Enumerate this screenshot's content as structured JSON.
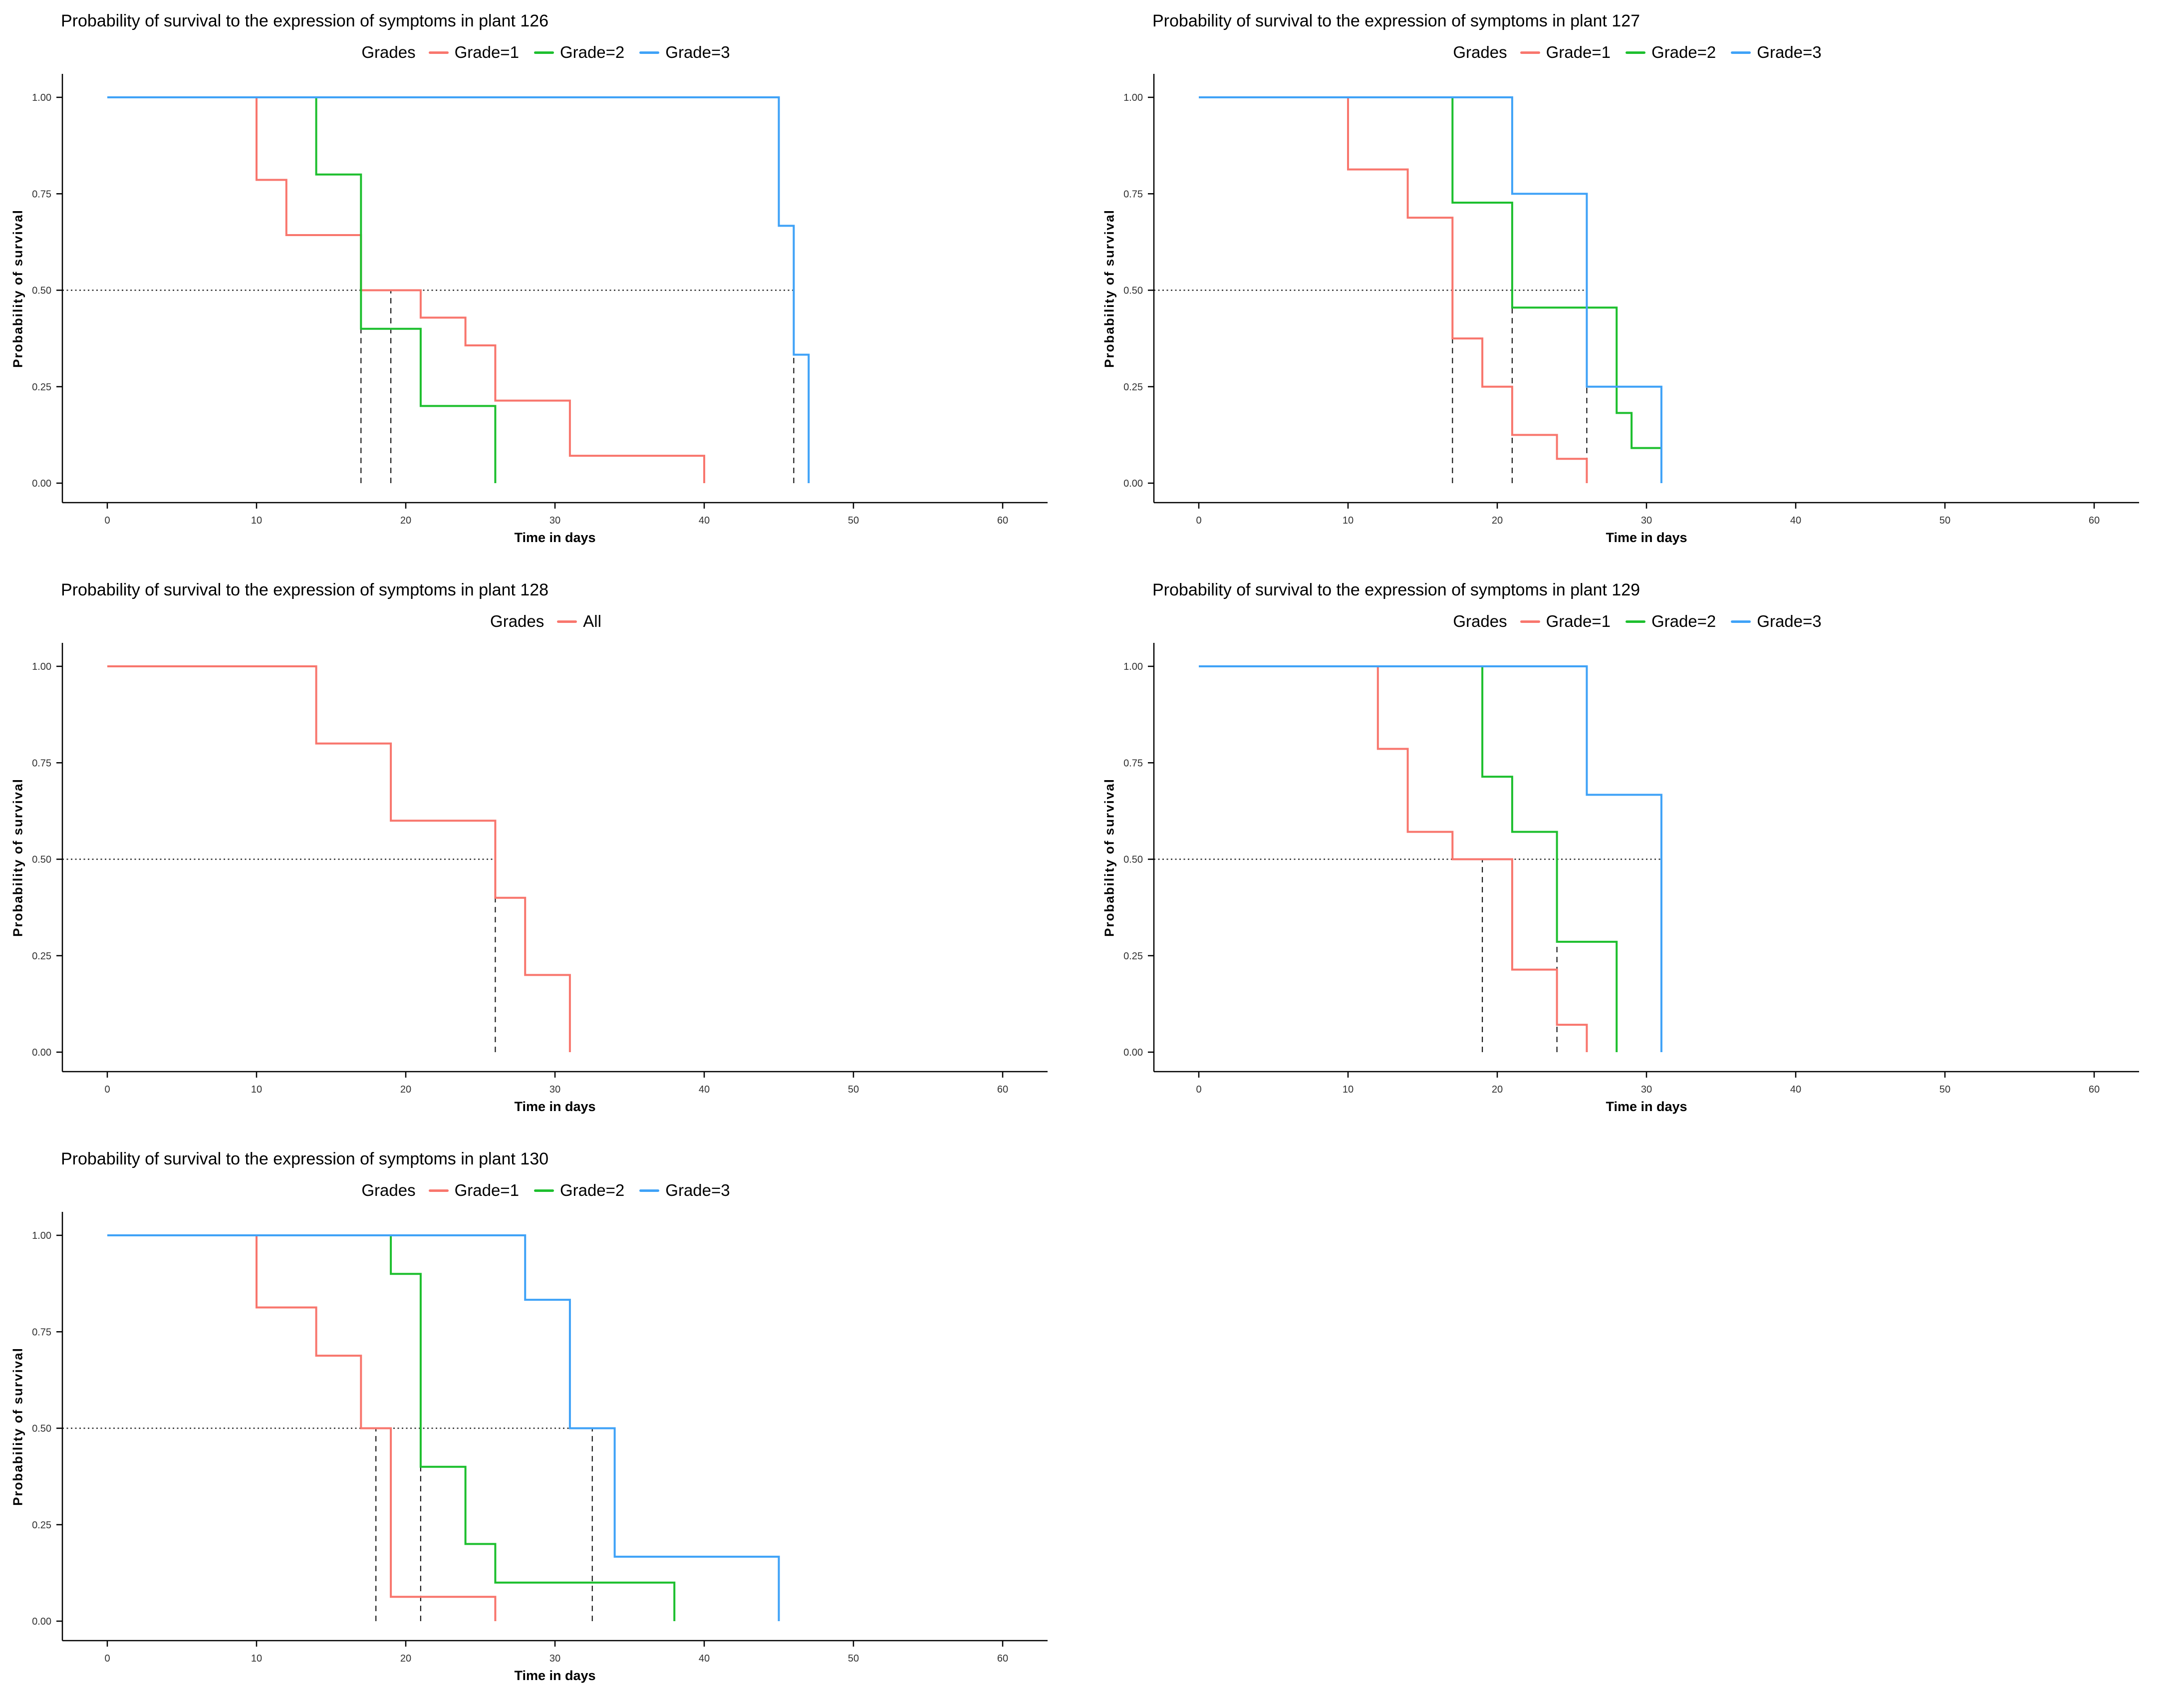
{
  "axis": {
    "xlabel": "Time in days",
    "ylabel": "Probability of survival",
    "xticks": [
      0,
      10,
      20,
      30,
      40,
      50,
      60
    ],
    "ytick_values": [
      0,
      0.25,
      0.5,
      0.75,
      1
    ],
    "ytick_labels": [
      "0.00",
      "0.25",
      "0.50",
      "0.75",
      "1.00"
    ],
    "xlim": [
      -3,
      63
    ],
    "ylim": [
      -0.05,
      1.06
    ],
    "grid": false,
    "legend_position": "top",
    "median_color": "#1a1a1a"
  },
  "colors": {
    "grade1": "#F8766D",
    "grade2": "#1DBF2E",
    "grade3": "#3FA2F7",
    "all": "#F8766D",
    "axis_line": "#000000",
    "tick_label": "#303030",
    "background": "#ffffff"
  },
  "chart_data": [
    {
      "type": "line",
      "subtype": "kaplan-meier-step",
      "title": "Probability of survival to the expression of symptoms in plant 126",
      "legend_title": "Grades",
      "series": [
        {
          "name": "Grade=1",
          "color": "#F8766D",
          "steps": [
            [
              0,
              1.0
            ],
            [
              10,
              0.786
            ],
            [
              12,
              0.643
            ],
            [
              17,
              0.5
            ],
            [
              21,
              0.429
            ],
            [
              24,
              0.357
            ],
            [
              26,
              0.214
            ],
            [
              31,
              0.071
            ],
            [
              40,
              0
            ]
          ]
        },
        {
          "name": "Grade=2",
          "color": "#1DBF2E",
          "steps": [
            [
              0,
              1.0
            ],
            [
              14,
              0.8
            ],
            [
              17,
              0.4
            ],
            [
              21,
              0.2
            ],
            [
              26,
              0
            ]
          ]
        },
        {
          "name": "Grade=3",
          "color": "#3FA2F7",
          "steps": [
            [
              0,
              1.0
            ],
            [
              45,
              0.667
            ],
            [
              46,
              0.333
            ],
            [
              47,
              0
            ]
          ]
        }
      ],
      "medians": {
        "y": 0.5,
        "h_end": 46,
        "verticals": [
          17,
          19,
          46
        ]
      }
    },
    {
      "type": "line",
      "subtype": "kaplan-meier-step",
      "title": "Probability of survival to the expression of symptoms in plant 127",
      "legend_title": "Grades",
      "series": [
        {
          "name": "Grade=1",
          "color": "#F8766D",
          "steps": [
            [
              0,
              1.0
            ],
            [
              10,
              0.813
            ],
            [
              14,
              0.688
            ],
            [
              17,
              0.375
            ],
            [
              19,
              0.25
            ],
            [
              21,
              0.125
            ],
            [
              24,
              0.063
            ],
            [
              26,
              0
            ]
          ]
        },
        {
          "name": "Grade=2",
          "color": "#1DBF2E",
          "steps": [
            [
              0,
              1.0
            ],
            [
              17,
              0.727
            ],
            [
              21,
              0.455
            ],
            [
              28,
              0.182
            ],
            [
              29,
              0.091
            ]
          ],
          "end_x": 31
        },
        {
          "name": "Grade=3",
          "color": "#3FA2F7",
          "steps": [
            [
              0,
              1.0
            ],
            [
              21,
              0.75
            ],
            [
              26,
              0.25
            ],
            [
              31,
              0
            ]
          ]
        }
      ],
      "medians": {
        "y": 0.5,
        "h_end": 26,
        "verticals": [
          17,
          21,
          26
        ]
      }
    },
    {
      "type": "line",
      "subtype": "kaplan-meier-step",
      "title": "Probability of survival to the expression of symptoms in plant 128",
      "legend_title": "Grades",
      "series": [
        {
          "name": "All",
          "color": "#F8766D",
          "steps": [
            [
              0,
              1.0
            ],
            [
              14,
              0.8
            ],
            [
              19,
              0.6
            ],
            [
              26,
              0.4
            ],
            [
              28,
              0.2
            ],
            [
              31,
              0
            ]
          ]
        }
      ],
      "medians": {
        "y": 0.5,
        "h_end": 26,
        "verticals": [
          26
        ]
      }
    },
    {
      "type": "line",
      "subtype": "kaplan-meier-step",
      "title": "Probability of survival to the expression of symptoms in plant 129",
      "legend_title": "Grades",
      "series": [
        {
          "name": "Grade=1",
          "color": "#F8766D",
          "steps": [
            [
              0,
              1.0
            ],
            [
              12,
              0.786
            ],
            [
              14,
              0.571
            ],
            [
              17,
              0.5
            ],
            [
              21,
              0.214
            ],
            [
              24,
              0.071
            ],
            [
              26,
              0
            ]
          ]
        },
        {
          "name": "Grade=2",
          "color": "#1DBF2E",
          "steps": [
            [
              0,
              1.0
            ],
            [
              19,
              0.714
            ],
            [
              21,
              0.571
            ],
            [
              24,
              0.286
            ],
            [
              28,
              0
            ]
          ]
        },
        {
          "name": "Grade=3",
          "color": "#3FA2F7",
          "steps": [
            [
              0,
              1.0
            ],
            [
              26,
              0.667
            ],
            [
              31,
              0
            ]
          ]
        }
      ],
      "medians": {
        "y": 0.5,
        "h_end": 31,
        "verticals": [
          19,
          24,
          31
        ]
      }
    },
    {
      "type": "line",
      "subtype": "kaplan-meier-step",
      "title": "Probability of survival to the expression of symptoms in plant 130",
      "legend_title": "Grades",
      "series": [
        {
          "name": "Grade=1",
          "color": "#F8766D",
          "steps": [
            [
              0,
              1.0
            ],
            [
              10,
              0.813
            ],
            [
              14,
              0.688
            ],
            [
              17,
              0.5
            ],
            [
              19,
              0.063
            ],
            [
              26,
              0
            ]
          ]
        },
        {
          "name": "Grade=2",
          "color": "#1DBF2E",
          "steps": [
            [
              0,
              1.0
            ],
            [
              19,
              0.9
            ],
            [
              21,
              0.4
            ],
            [
              24,
              0.2
            ],
            [
              26,
              0.1
            ],
            [
              38,
              0
            ]
          ]
        },
        {
          "name": "Grade=3",
          "color": "#3FA2F7",
          "steps": [
            [
              0,
              1.0
            ],
            [
              28,
              0.833
            ],
            [
              31,
              0.5
            ],
            [
              34,
              0.167
            ],
            [
              45,
              0
            ]
          ]
        }
      ],
      "medians": {
        "y": 0.5,
        "h_end": 32.5,
        "verticals": [
          18,
          21,
          32.5
        ]
      }
    }
  ]
}
